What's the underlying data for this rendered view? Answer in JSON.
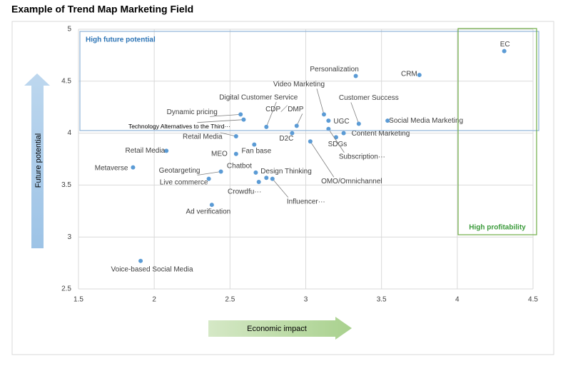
{
  "chart_data": {
    "type": "scatter",
    "title": "Example of Trend Map Marketing Field",
    "x_label": "Economic impact",
    "y_label": "Future potential",
    "annotations": [
      "High future potential",
      "High profitability"
    ],
    "color": "#5b9bd5",
    "grid": true,
    "xlim": [
      1.5,
      4.5
    ],
    "xticks": [
      1.5,
      2,
      2.5,
      3,
      3.5,
      4,
      4.5
    ],
    "ylim": [
      2.5,
      5
    ],
    "yticks": [
      2.5,
      3,
      3.5,
      4,
      4.5,
      5
    ],
    "labels": [
      "EC",
      "CRM",
      "Personalization",
      "Video Marketing",
      "UGC",
      "Customer Success",
      "Social Media Marketing",
      "Dynamic pricing",
      "Technology Alternatives to the Third···",
      "Digital Customer Service",
      "CDP／DMP",
      "D2C",
      "SDGs",
      "Content Marketing",
      "Subscription···",
      "Retail Media",
      "Retail Media",
      "Fan base",
      "MEO",
      "OMO/Omnichannel",
      "Metaverse",
      "Geotargeting",
      "Chatbot",
      "Design Thinking",
      "Live commerce",
      "Crowdfu···",
      "Influencer···",
      "Ad  verification",
      "Voice-based Social Media"
    ],
    "x": [
      4.31,
      3.75,
      3.33,
      3.12,
      3.15,
      3.35,
      3.54,
      2.57,
      2.59,
      2.74,
      2.94,
      2.91,
      3.2,
      3.25,
      3.15,
      2.54,
      2.08,
      2.66,
      2.54,
      3.03,
      1.86,
      2.44,
      2.67,
      2.74,
      2.36,
      2.69,
      2.78,
      2.38,
      1.91
    ],
    "values": [
      4.79,
      4.56,
      4.55,
      4.18,
      4.12,
      4.09,
      4.12,
      4.18,
      4.13,
      4.06,
      4.07,
      4.0,
      3.96,
      4.0,
      4.04,
      3.97,
      3.83,
      3.89,
      3.8,
      3.92,
      3.67,
      3.63,
      3.62,
      3.57,
      3.56,
      3.53,
      3.56,
      3.31,
      2.77
    ]
  }
}
